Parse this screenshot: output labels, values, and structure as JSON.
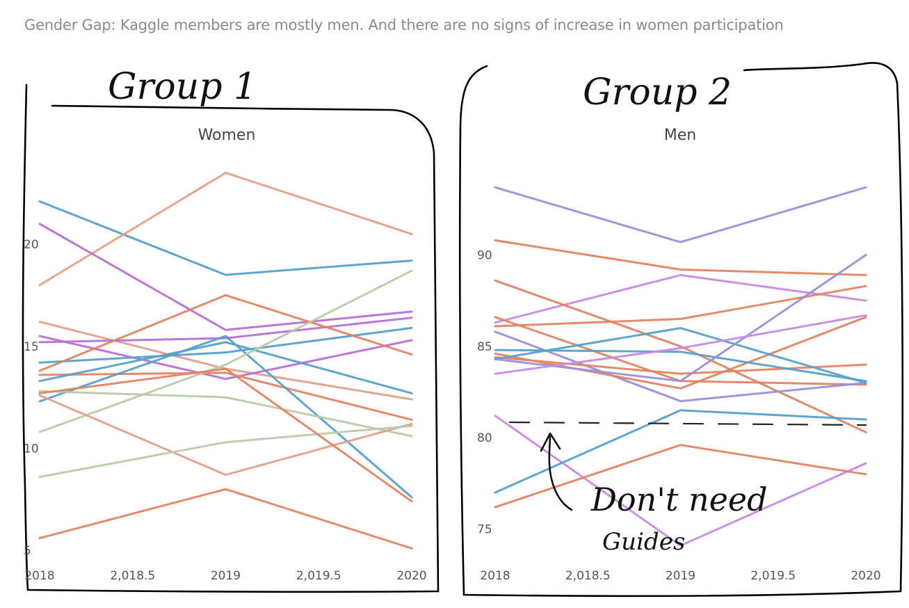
{
  "page_title": "Gender Gap: Kaggle members are mostly men. And there are no signs of increase in women participation",
  "annotations": {
    "group1": "Group 1",
    "group2": "Group 2",
    "note_line1": "Don't need",
    "note_line2": "Guides"
  },
  "chart_data": [
    {
      "type": "line",
      "title": "Women",
      "x": [
        2018,
        2019,
        2020
      ],
      "xticks": [
        "2018",
        "2,018.5",
        "2019",
        "2,019.5",
        "2020"
      ],
      "xtick_values": [
        2018,
        2018.5,
        2019,
        2019.5,
        2020
      ],
      "yticks": [
        5,
        10,
        15,
        20
      ],
      "ylim": [
        4.7,
        24.4
      ],
      "grid": false,
      "series": [
        {
          "values": [
            22.1,
            18.5,
            19.2
          ],
          "color": "#56a0cf"
        },
        {
          "values": [
            18.0,
            23.5,
            20.5
          ],
          "color": "#e2a08a"
        },
        {
          "values": [
            21.0,
            15.8,
            16.7
          ],
          "color": "#b86fd6"
        },
        {
          "values": [
            16.2,
            13.9,
            12.4
          ],
          "color": "#e2a08a"
        },
        {
          "values": [
            15.5,
            13.4,
            15.3
          ],
          "color": "#b86fd6"
        },
        {
          "values": [
            15.2,
            15.4,
            16.4
          ],
          "color": "#b86fd6"
        },
        {
          "values": [
            14.2,
            14.7,
            15.9
          ],
          "color": "#56a0cf"
        },
        {
          "values": [
            13.8,
            17.5,
            14.6
          ],
          "color": "#e38463"
        },
        {
          "values": [
            13.6,
            13.7,
            11.4
          ],
          "color": "#e38463"
        },
        {
          "values": [
            13.3,
            15.2,
            12.7
          ],
          "color": "#56a0cf"
        },
        {
          "values": [
            12.3,
            15.5,
            7.6
          ],
          "color": "#56a0cf"
        },
        {
          "values": [
            12.8,
            12.5,
            10.6
          ],
          "color": "#b9cba9"
        },
        {
          "values": [
            10.8,
            14.1,
            18.7
          ],
          "color": "#b9cba9"
        },
        {
          "values": [
            12.6,
            8.7,
            11.2
          ],
          "color": "#e2a08a"
        },
        {
          "values": [
            8.6,
            10.3,
            11.1
          ],
          "color": "#b9cba9"
        },
        {
          "values": [
            12.7,
            13.9,
            7.4
          ],
          "color": "#e38463"
        },
        {
          "values": [
            5.6,
            8.0,
            5.1
          ],
          "color": "#e38463"
        }
      ]
    },
    {
      "type": "line",
      "title": "Men",
      "x": [
        2018,
        2019,
        2020
      ],
      "xticks": [
        "2018",
        "2,018.5",
        "2019",
        "2,019.5",
        "2020"
      ],
      "xtick_values": [
        2018,
        2018.5,
        2019,
        2019.5,
        2020
      ],
      "yticks": [
        75,
        80,
        85,
        90
      ],
      "ylim": [
        73.5,
        95.5
      ],
      "grid": false,
      "series": [
        {
          "values": [
            93.7,
            90.7,
            93.7
          ],
          "color": "#9a8fdb"
        },
        {
          "values": [
            90.8,
            89.2,
            88.9
          ],
          "color": "#e38463"
        },
        {
          "values": [
            86.3,
            88.9,
            87.5
          ],
          "color": "#c98ae0"
        },
        {
          "values": [
            86.1,
            86.5,
            88.3
          ],
          "color": "#e38463"
        },
        {
          "values": [
            88.6,
            85.0,
            80.3
          ],
          "color": "#e38463"
        },
        {
          "values": [
            86.6,
            83.1,
            82.9
          ],
          "color": "#e38463"
        },
        {
          "values": [
            85.8,
            82.0,
            83.0
          ],
          "color": "#9a8fdb"
        },
        {
          "values": [
            84.6,
            82.7,
            86.6
          ],
          "color": "#e38463"
        },
        {
          "values": [
            84.4,
            83.5,
            84.0
          ],
          "color": "#e38463"
        },
        {
          "values": [
            84.8,
            84.7,
            83.1
          ],
          "color": "#56a0cf"
        },
        {
          "values": [
            84.3,
            86.0,
            83.0
          ],
          "color": "#56a0cf"
        },
        {
          "values": [
            84.3,
            83.1,
            90.0
          ],
          "color": "#9a8fdb"
        },
        {
          "values": [
            83.5,
            84.9,
            86.7
          ],
          "color": "#c98ae0"
        },
        {
          "values": [
            81.2,
            74.1,
            78.6
          ],
          "color": "#c98ae0"
        },
        {
          "values": [
            77.0,
            81.5,
            81.0
          ],
          "color": "#56a0cf"
        },
        {
          "values": [
            76.2,
            79.6,
            78.0
          ],
          "color": "#e38463"
        }
      ]
    }
  ]
}
